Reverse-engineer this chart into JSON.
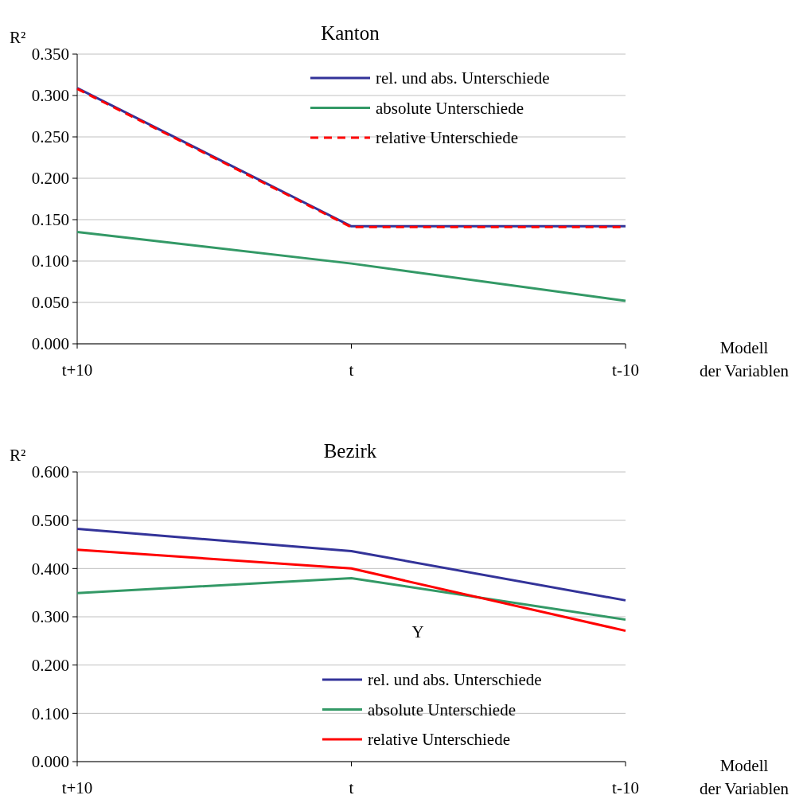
{
  "chart_data": [
    {
      "type": "line",
      "title": "Kanton",
      "ylabel": "R²",
      "xlabel": "Modell\nder Variablen",
      "categories": [
        "t+10",
        "t",
        "t-10"
      ],
      "series": [
        {
          "name": "rel. und abs. Unterschiede",
          "color": "#333399",
          "values": [
            0.309,
            0.142,
            0.142
          ]
        },
        {
          "name": "absolute Unterschiede",
          "color": "#339966",
          "values": [
            0.135,
            0.097,
            0.052
          ]
        },
        {
          "name": "relative Unterschiede",
          "color": "#ff0000",
          "values": [
            0.308,
            0.141,
            0.141
          ],
          "line_style": "dashed"
        }
      ],
      "ylim": [
        0,
        0.35
      ],
      "yticks": [
        {
          "value": 0,
          "label": "0.000"
        },
        {
          "value": 0.05,
          "label": "0.050"
        },
        {
          "value": 0.1,
          "label": "0.100"
        },
        {
          "value": 0.15,
          "label": "0.150"
        },
        {
          "value": 0.2,
          "label": "0.200"
        },
        {
          "value": 0.25,
          "label": "0.250"
        },
        {
          "value": 0.3,
          "label": "0.300"
        },
        {
          "value": 0.35,
          "label": "0.350"
        }
      ],
      "grid": "y",
      "legend": "top right",
      "marker": "none"
    },
    {
      "type": "line",
      "title": "Bezirk",
      "ylabel": "R²",
      "xlabel": "Modell\nder Variablen",
      "categories": [
        "t+10",
        "t",
        "t-10"
      ],
      "series": [
        {
          "name": "rel. und abs. Unterschiede",
          "color": "#333399",
          "values": [
            0.482,
            0.436,
            0.334
          ]
        },
        {
          "name": "absolute Unterschiede",
          "color": "#339966",
          "values": [
            0.349,
            0.38,
            0.294
          ]
        },
        {
          "name": "relative Unterschiede",
          "color": "#ff0000",
          "values": [
            0.439,
            0.4,
            0.271
          ]
        }
      ],
      "ylim": [
        0,
        0.6
      ],
      "yticks": [
        {
          "value": 0,
          "label": "0.000"
        },
        {
          "value": 0.1,
          "label": "0.100"
        },
        {
          "value": 0.2,
          "label": "0.200"
        },
        {
          "value": 0.3,
          "label": "0.300"
        },
        {
          "value": 0.4,
          "label": "0.400"
        },
        {
          "value": 0.5,
          "label": "0.500"
        },
        {
          "value": 0.6,
          "label": "0.600"
        }
      ],
      "annotations": [
        "Y"
      ],
      "grid": "y",
      "legend": "bottom right",
      "marker": "none"
    }
  ]
}
